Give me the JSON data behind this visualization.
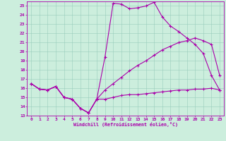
{
  "xlabel": "Windchill (Refroidissement éolien,°C)",
  "bg_color": "#cceedd",
  "line_color": "#aa00aa",
  "grid_color": "#99ccbb",
  "xlim": [
    -0.5,
    23.5
  ],
  "ylim": [
    13,
    25.5
  ],
  "yticks": [
    13,
    14,
    15,
    16,
    17,
    18,
    19,
    20,
    21,
    22,
    23,
    24,
    25
  ],
  "xticks": [
    0,
    1,
    2,
    3,
    4,
    5,
    6,
    7,
    8,
    9,
    10,
    11,
    12,
    13,
    14,
    15,
    16,
    17,
    18,
    19,
    20,
    21,
    22,
    23
  ],
  "series1_x": [
    0,
    1,
    2,
    3,
    4,
    5,
    6,
    7,
    8,
    9,
    10,
    11,
    12,
    13,
    14,
    15,
    16,
    17,
    18,
    19,
    20,
    21,
    22,
    23
  ],
  "series1_y": [
    16.5,
    15.9,
    15.8,
    16.2,
    15.0,
    14.8,
    13.8,
    13.3,
    14.8,
    19.4,
    25.3,
    25.2,
    24.7,
    24.8,
    25.0,
    25.4,
    23.8,
    22.8,
    22.2,
    21.5,
    20.8,
    19.8,
    17.4,
    15.8
  ],
  "series2_x": [
    0,
    1,
    2,
    3,
    4,
    5,
    6,
    7,
    8,
    9,
    10,
    11,
    12,
    13,
    14,
    15,
    16,
    17,
    18,
    19,
    20,
    21,
    22,
    23
  ],
  "series2_y": [
    16.5,
    15.9,
    15.8,
    16.2,
    15.0,
    14.8,
    13.8,
    13.3,
    14.8,
    14.8,
    15.0,
    15.2,
    15.3,
    15.3,
    15.4,
    15.5,
    15.6,
    15.7,
    15.8,
    15.8,
    15.9,
    15.9,
    16.0,
    15.8
  ],
  "series3_x": [
    0,
    1,
    2,
    3,
    4,
    5,
    6,
    7,
    8,
    9,
    10,
    11,
    12,
    13,
    14,
    15,
    16,
    17,
    18,
    19,
    20,
    21,
    22,
    23
  ],
  "series3_y": [
    16.5,
    15.9,
    15.8,
    16.2,
    15.0,
    14.8,
    13.8,
    13.3,
    14.8,
    15.8,
    16.5,
    17.2,
    17.9,
    18.5,
    19.0,
    19.6,
    20.2,
    20.6,
    21.0,
    21.2,
    21.5,
    21.2,
    20.8,
    17.4
  ]
}
